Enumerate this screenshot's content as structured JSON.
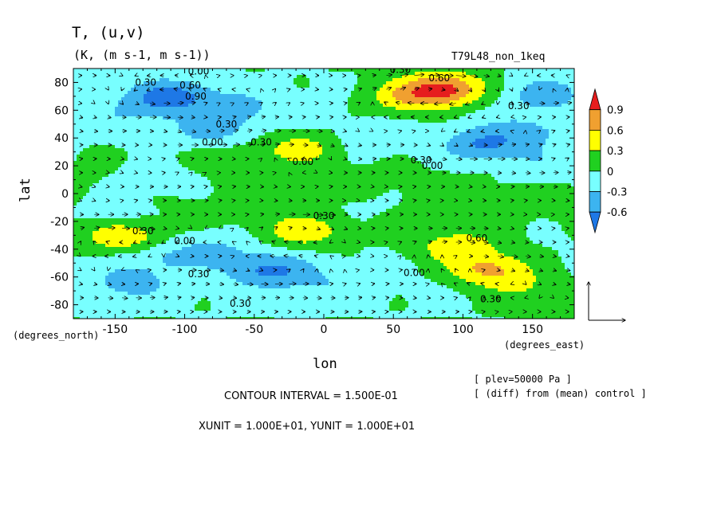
{
  "title": "T, (u,v)",
  "subtitle": "(K, (m s-1, m s-1))",
  "experiment": "T79L48_non_1keq",
  "chart_data": {
    "type": "heatmap",
    "xlabel": "lon",
    "ylabel": "lat",
    "x_unit_label": "(degrees_east)",
    "y_unit_label": "(degrees_north)",
    "xlim": [
      -180,
      180
    ],
    "ylim": [
      -90,
      90
    ],
    "xticks": [
      -150,
      -100,
      -50,
      0,
      50,
      100,
      150
    ],
    "xtick_labels": [
      "-150",
      "-100",
      "-50",
      "0",
      "50",
      "100",
      "150"
    ],
    "yticks": [
      -80,
      -60,
      -40,
      -20,
      0,
      20,
      40,
      60,
      80
    ],
    "ytick_labels": [
      "-80",
      "-60",
      "-40",
      "-20",
      "0",
      "20",
      "40",
      "60",
      "80"
    ],
    "colorbar": {
      "levels": [
        -0.6,
        -0.3,
        0,
        0.3,
        0.6,
        0.9
      ],
      "labels": [
        "-0.6",
        "-0.3",
        "0",
        "0.3",
        "0.6",
        "0.9"
      ],
      "colors": [
        "#1e78e6",
        "#3cb4f0",
        "#78ffff",
        "#20d020",
        "#ffff00",
        "#f0a030",
        "#e61e1e"
      ]
    },
    "contour_labels": [
      {
        "text": "0.30",
        "lon": -128,
        "lat": 80
      },
      {
        "text": "0.60",
        "lon": -96,
        "lat": 78
      },
      {
        "text": "0.90",
        "lon": -92,
        "lat": 70
      },
      {
        "text": "0.00",
        "lon": -90,
        "lat": 88
      },
      {
        "text": "0.30",
        "lon": -70,
        "lat": 50
      },
      {
        "text": "0.00",
        "lon": -80,
        "lat": 37
      },
      {
        "text": "0.30",
        "lon": -45,
        "lat": 37
      },
      {
        "text": "0.00",
        "lon": -15,
        "lat": 23
      },
      {
        "text": "0.30",
        "lon": 55,
        "lat": 89
      },
      {
        "text": "0.60",
        "lon": 83,
        "lat": 83
      },
      {
        "text": "0.30",
        "lon": 140,
        "lat": 63
      },
      {
        "text": "0.30",
        "lon": 70,
        "lat": 24
      },
      {
        "text": "0.00",
        "lon": 78,
        "lat": 20
      },
      {
        "text": "0.30",
        "lon": 0,
        "lat": -16
      },
      {
        "text": "0.30",
        "lon": -130,
        "lat": -27
      },
      {
        "text": "0.00",
        "lon": -100,
        "lat": -34
      },
      {
        "text": "0.30",
        "lon": -90,
        "lat": -58
      },
      {
        "text": "0.00",
        "lon": 65,
        "lat": -57
      },
      {
        "text": "0.60",
        "lon": 110,
        "lat": -32
      },
      {
        "text": "0.30",
        "lon": -60,
        "lat": -79
      },
      {
        "text": "0.30",
        "lon": 120,
        "lat": -76
      }
    ],
    "anomaly_centers": [
      {
        "lon": -110,
        "lat": 70,
        "value": -0.7
      },
      {
        "lon": -80,
        "lat": 45,
        "value": -0.4
      },
      {
        "lon": -60,
        "lat": 62,
        "value": -0.3
      },
      {
        "lon": -140,
        "lat": 58,
        "value": -0.2
      },
      {
        "lon": 160,
        "lat": 72,
        "value": -0.4
      },
      {
        "lon": -15,
        "lat": 33,
        "value": 0.45
      },
      {
        "lon": -70,
        "lat": 30,
        "value": 0.15
      },
      {
        "lon": 85,
        "lat": 75,
        "value": 1.05
      },
      {
        "lon": 55,
        "lat": 68,
        "value": 0.4
      },
      {
        "lon": 115,
        "lat": 35,
        "value": -0.6
      },
      {
        "lon": 150,
        "lat": 45,
        "value": -0.3
      },
      {
        "lon": 30,
        "lat": 38,
        "value": -0.2
      },
      {
        "lon": -15,
        "lat": -27,
        "value": 0.5
      },
      {
        "lon": -140,
        "lat": -33,
        "value": 0.45
      },
      {
        "lon": -150,
        "lat": -28,
        "value": 0.15
      },
      {
        "lon": -40,
        "lat": -55,
        "value": -0.6
      },
      {
        "lon": -120,
        "lat": -45,
        "value": -0.3
      },
      {
        "lon": -80,
        "lat": -40,
        "value": -0.3
      },
      {
        "lon": -140,
        "lat": -65,
        "value": -0.35
      },
      {
        "lon": 0,
        "lat": -65,
        "value": -0.2
      },
      {
        "lon": 120,
        "lat": -55,
        "value": 0.7
      },
      {
        "lon": 95,
        "lat": -38,
        "value": 0.5
      },
      {
        "lon": 150,
        "lat": -70,
        "value": 0.3
      },
      {
        "lon": -150,
        "lat": -13,
        "value": -0.2
      },
      {
        "lon": -120,
        "lat": 10,
        "value": -0.2
      },
      {
        "lon": 20,
        "lat": -10,
        "value": -0.1
      },
      {
        "lon": 160,
        "lat": 20,
        "value": -0.25
      }
    ],
    "wind_vectors": "uniform 10 by 10 degree grid; reference arrows XUNIT 10, YUNIT 10"
  },
  "contour_interval": "CONTOUR INTERVAL = 1.500E-01",
  "units_line": "XUNIT = 1.000E+01, YUNIT = 1.000E+01",
  "plev_note": "[ plev=50000 Pa ]",
  "diff_note": "[ (diff) from (mean) control ]"
}
